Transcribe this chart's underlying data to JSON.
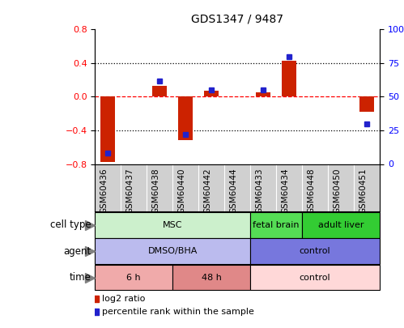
{
  "title": "GDS1347 / 9487",
  "samples": [
    "GSM60436",
    "GSM60437",
    "GSM60438",
    "GSM60440",
    "GSM60442",
    "GSM60444",
    "GSM60433",
    "GSM60434",
    "GSM60448",
    "GSM60450",
    "GSM60451"
  ],
  "log2_ratio": [
    -0.78,
    0.0,
    0.13,
    -0.52,
    0.07,
    0.0,
    0.05,
    0.43,
    0.0,
    0.0,
    -0.18
  ],
  "percentile_rank": [
    8,
    0,
    62,
    22,
    55,
    0,
    55,
    80,
    0,
    0,
    30
  ],
  "ylim_left": [
    -0.8,
    0.8
  ],
  "ylim_right": [
    0,
    100
  ],
  "yticks_left": [
    -0.8,
    -0.4,
    0.0,
    0.4,
    0.8
  ],
  "yticks_right": [
    0,
    25,
    50,
    75,
    100
  ],
  "bar_color_red": "#cc2200",
  "bar_color_blue": "#2222cc",
  "dotted_line_color": "black",
  "zero_line_color": "red",
  "cell_type_groups": [
    {
      "label": "MSC",
      "start": 0,
      "end": 6,
      "color": "#ccf0cc"
    },
    {
      "label": "fetal brain",
      "start": 6,
      "end": 8,
      "color": "#55dd55"
    },
    {
      "label": "adult liver",
      "start": 8,
      "end": 11,
      "color": "#33cc33"
    }
  ],
  "agent_groups": [
    {
      "label": "DMSO/BHA",
      "start": 0,
      "end": 6,
      "color": "#bbbbee"
    },
    {
      "label": "control",
      "start": 6,
      "end": 11,
      "color": "#7777dd"
    }
  ],
  "time_groups": [
    {
      "label": "6 h",
      "start": 0,
      "end": 3,
      "color": "#f0aaaa"
    },
    {
      "label": "48 h",
      "start": 3,
      "end": 6,
      "color": "#e08888"
    },
    {
      "label": "control",
      "start": 6,
      "end": 11,
      "color": "#ffd8d8"
    }
  ],
  "row_labels": [
    "cell type",
    "agent",
    "time"
  ],
  "legend_red_label": "log2 ratio",
  "legend_blue_label": "percentile rank within the sample"
}
